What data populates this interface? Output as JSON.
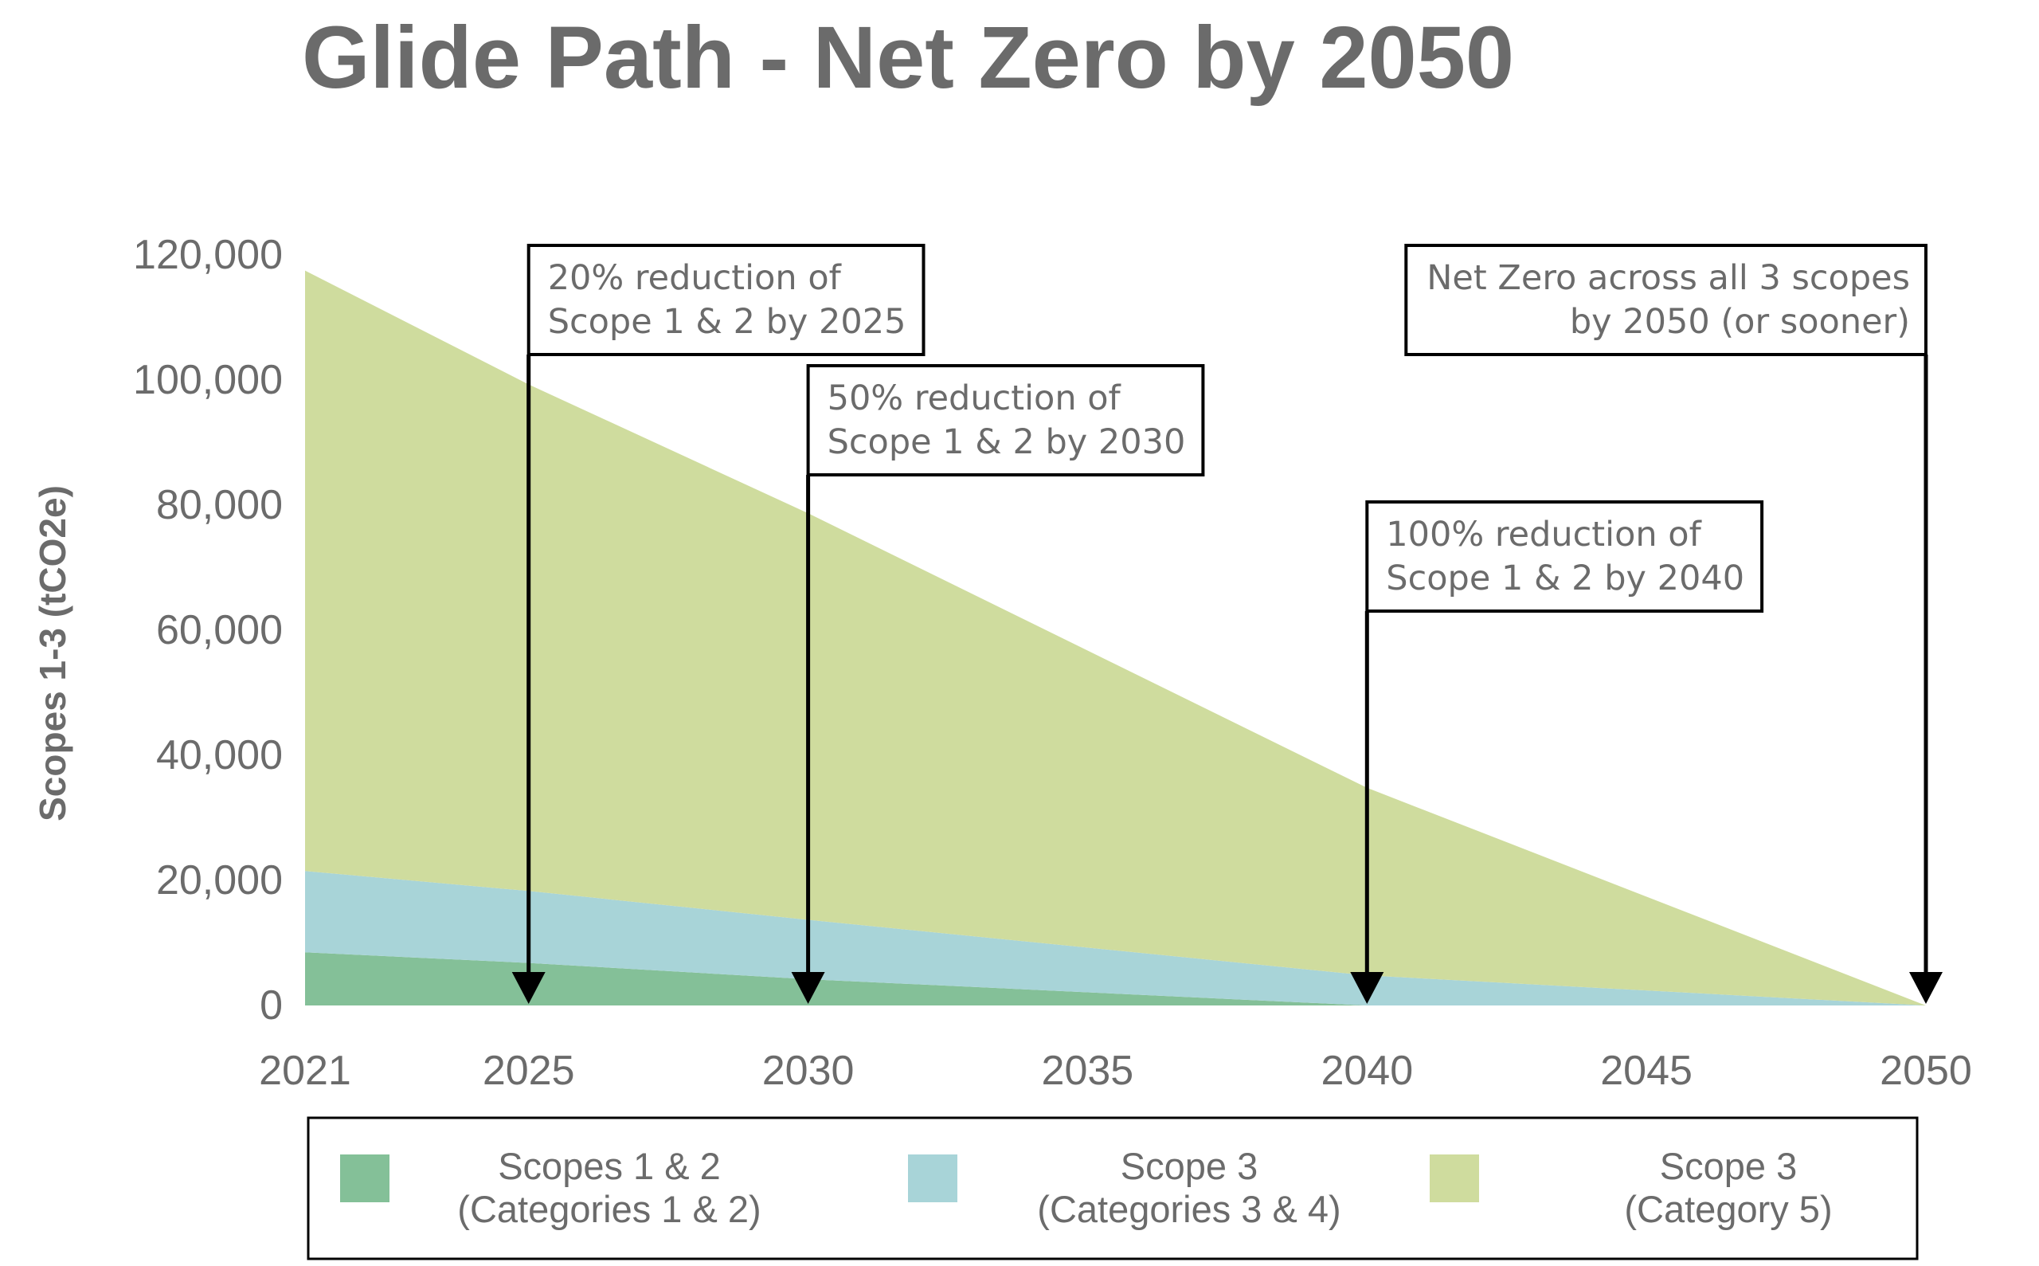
{
  "chart_data": {
    "type": "area",
    "stacked": true,
    "title": "Glide Path - Net Zero by 2050",
    "ylabel": "Scopes 1-3 (tCO2e)",
    "xlabel": "",
    "xlim": [
      2021,
      2050
    ],
    "ylim": [
      0,
      120000
    ],
    "y_ticks": [
      0,
      20000,
      40000,
      60000,
      80000,
      100000,
      120000
    ],
    "y_tick_labels": [
      "0",
      "20,000",
      "40,000",
      "60,000",
      "80,000",
      "100,000",
      "120,000"
    ],
    "x_ticks": [
      2021,
      2025,
      2030,
      2035,
      2040,
      2045,
      2050
    ],
    "x_tick_labels": [
      "2021",
      "2025",
      "2030",
      "2035",
      "2040",
      "2045",
      "2050"
    ],
    "x": [
      2021,
      2025,
      2030,
      2040,
      2050
    ],
    "series": [
      {
        "name": "Scopes 1 & 2 (Categories 1 & 2)",
        "legend_line1": "Scopes 1 & 2",
        "legend_line2": "(Categories 1 & 2)",
        "color": "#84c098",
        "values": [
          8500,
          6800,
          4200,
          0,
          0
        ]
      },
      {
        "name": "Scope 3 (Categories 3 & 4)",
        "legend_line1": "Scope 3",
        "legend_line2": "(Categories 3 & 4)",
        "color": "#a8d4d8",
        "values": [
          13000,
          11500,
          9500,
          4800,
          0
        ]
      },
      {
        "name": "Scope 3 (Category 5)",
        "legend_line1": "Scope 3",
        "legend_line2": "(Category 5)",
        "color": "#cfdc9e",
        "values": [
          96000,
          81000,
          65000,
          30000,
          0
        ]
      }
    ],
    "annotations": [
      {
        "year": 2025,
        "line1": "20% reduction of",
        "line2": "Scope 1 & 2 by 2025",
        "align": "left"
      },
      {
        "year": 2030,
        "line1": "50% reduction of",
        "line2": "Scope 1 & 2 by 2030",
        "align": "left"
      },
      {
        "year": 2040,
        "line1": "100% reduction of",
        "line2": "Scope 1 & 2 by 2040",
        "align": "left"
      },
      {
        "year": 2050,
        "line1": "Net Zero across all 3 scopes",
        "line2": "by 2050 (or sooner)",
        "align": "right"
      }
    ],
    "legend_position": "bottom"
  }
}
